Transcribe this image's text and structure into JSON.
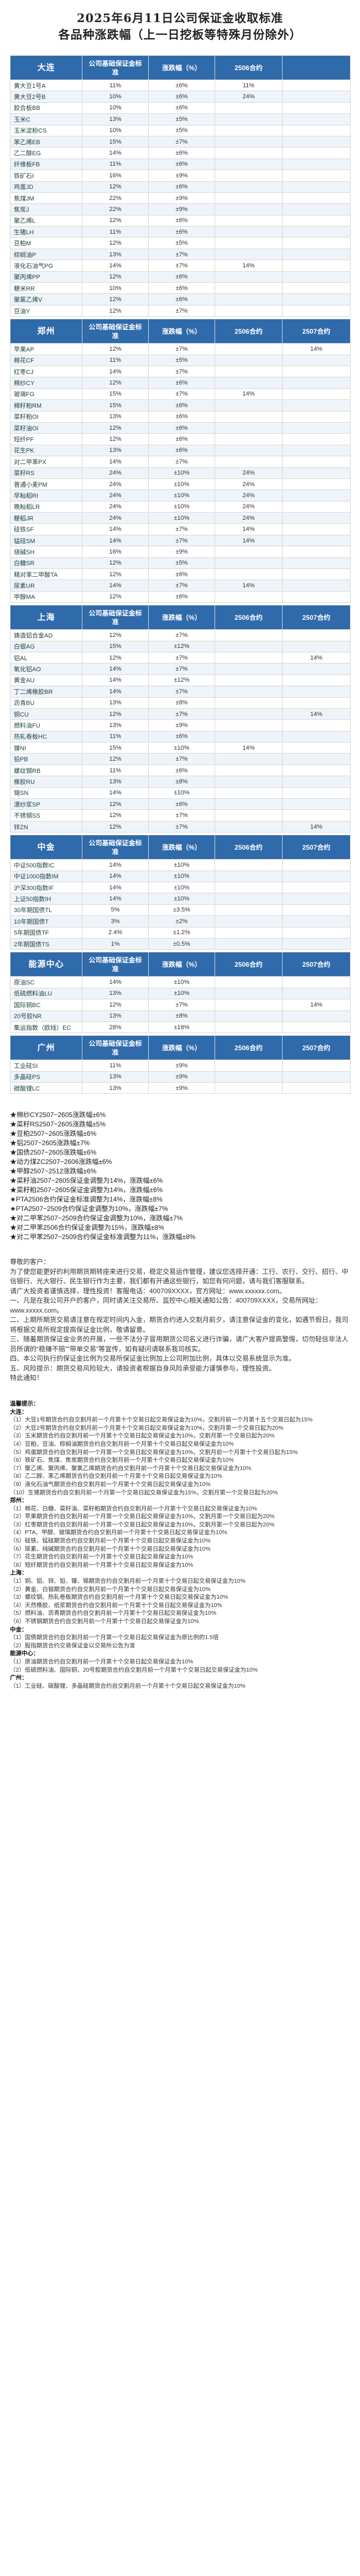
{
  "title": {
    "line1": "2025年6月11日公司保证金收取标准",
    "line2": "各品种涨跌幅（上一日挖板等特殊月份除外）"
  },
  "headers": {
    "h1": "公司基础保证金标准",
    "h2": "涨跌幅（%）",
    "h3": "2506合约",
    "h4": "2507合约"
  },
  "sections": [
    {
      "exchange": "大连",
      "h3": "2506合约",
      "rows": [
        [
          "黄大豆1号A",
          "11%",
          "±6%",
          "11%"
        ],
        [
          "黄大豆2号B",
          "10%",
          "±6%",
          "24%"
        ],
        [
          "胶合板BB",
          "10%",
          "±6%",
          ""
        ],
        [
          "玉米C",
          "13%",
          "±5%",
          ""
        ],
        [
          "玉米淀粉CS",
          "10%",
          "±5%",
          ""
        ],
        [
          "苯乙烯EB",
          "15%",
          "±7%",
          ""
        ],
        [
          "乙二醇EG",
          "14%",
          "±6%",
          ""
        ],
        [
          "纤维板FB",
          "11%",
          "±6%",
          ""
        ],
        [
          "铁矿石I",
          "16%",
          "±9%",
          ""
        ],
        [
          "鸡蛋JD",
          "12%",
          "±6%",
          ""
        ],
        [
          "焦煤JM",
          "22%",
          "±9%",
          ""
        ],
        [
          "焦炭J",
          "22%",
          "±9%",
          ""
        ],
        [
          "聚乙烯L",
          "12%",
          "±6%",
          ""
        ],
        [
          "生猪LH",
          "11%",
          "±6%",
          ""
        ],
        [
          "豆粕M",
          "12%",
          "±5%",
          ""
        ],
        [
          "棕榈油P",
          "13%",
          "±7%",
          ""
        ],
        [
          "液化石油气PG",
          "14%",
          "±7%",
          "14%"
        ],
        [
          "聚丙烯PP",
          "12%",
          "±6%",
          ""
        ],
        [
          "粳米RR",
          "10%",
          "±6%",
          ""
        ],
        [
          "聚氯乙烯V",
          "12%",
          "±6%",
          ""
        ],
        [
          "豆油Y",
          "12%",
          "±7%",
          ""
        ]
      ]
    },
    {
      "exchange": "郑州",
      "h3": "2506合约",
      "h4": "2507合约",
      "rows": [
        [
          "苹果AP",
          "12%",
          "±7%",
          "",
          "14%"
        ],
        [
          "棉花CF",
          "11%",
          "±5%",
          "",
          ""
        ],
        [
          "红枣CJ",
          "14%",
          "±7%",
          "",
          ""
        ],
        [
          "棉纱CY",
          "12%",
          "±6%",
          "",
          ""
        ],
        [
          "玻璃FG",
          "15%",
          "±7%",
          "14%",
          ""
        ],
        [
          "棉籽粕RM",
          "15%",
          "±6%",
          "",
          ""
        ],
        [
          "菜籽粕OI",
          "13%",
          "±6%",
          "",
          ""
        ],
        [
          "菜籽油OI",
          "12%",
          "±6%",
          "",
          ""
        ],
        [
          "短纤PF",
          "12%",
          "±6%",
          "",
          ""
        ],
        [
          "花生PK",
          "13%",
          "±6%",
          "",
          ""
        ],
        [
          "对二甲苯PX",
          "14%",
          "±7%",
          "",
          ""
        ],
        [
          "菜籽RS",
          "24%",
          "±10%",
          "24%",
          ""
        ],
        [
          "普通小麦PM",
          "24%",
          "±10%",
          "24%",
          ""
        ],
        [
          "早籼稻RI",
          "24%",
          "±10%",
          "24%",
          ""
        ],
        [
          "晚籼稻LR",
          "24%",
          "±10%",
          "24%",
          ""
        ],
        [
          "粳稻JR",
          "24%",
          "±10%",
          "24%",
          ""
        ],
        [
          "硅铁SF",
          "14%",
          "±7%",
          "14%",
          ""
        ],
        [
          "锰硅SM",
          "14%",
          "±7%",
          "14%",
          ""
        ],
        [
          "烧碱SH",
          "16%",
          "±9%",
          "",
          ""
        ],
        [
          "白糖SR",
          "12%",
          "±5%",
          "",
          ""
        ],
        [
          "精对苯二甲酸TA",
          "12%",
          "±6%",
          "",
          ""
        ],
        [
          "尿素UR",
          "14%",
          "±7%",
          "14%",
          ""
        ],
        [
          "甲醇MA",
          "12%",
          "±6%",
          "",
          ""
        ]
      ]
    },
    {
      "exchange": "上海",
      "h3": "2506合约",
      "h4": "2507合约",
      "rows": [
        [
          "铸造铝合金AD",
          "12%",
          "±7%",
          "",
          ""
        ],
        [
          "白银AG",
          "15%",
          "±12%",
          "",
          ""
        ],
        [
          "铝AL",
          "12%",
          "±7%",
          "",
          "14%"
        ],
        [
          "氧化铝AO",
          "14%",
          "±7%",
          "",
          ""
        ],
        [
          "黄金AU",
          "14%",
          "±12%",
          "",
          ""
        ],
        [
          "丁二烯橡胶BR",
          "14%",
          "±7%",
          "",
          ""
        ],
        [
          "沥青BU",
          "13%",
          "±8%",
          "",
          ""
        ],
        [
          "铜CU",
          "12%",
          "±7%",
          "",
          "14%"
        ],
        [
          "燃料油FU",
          "13%",
          "±9%",
          "",
          ""
        ],
        [
          "热轧卷板HC",
          "11%",
          "±6%",
          "",
          ""
        ],
        [
          "镍NI",
          "15%",
          "±10%",
          "14%",
          ""
        ],
        [
          "铅PB",
          "12%",
          "±7%",
          "",
          ""
        ],
        [
          "螺纹钢RB",
          "11%",
          "±6%",
          "",
          ""
        ],
        [
          "橡胶RU",
          "13%",
          "±8%",
          "",
          ""
        ],
        [
          "锡SN",
          "14%",
          "±10%",
          "",
          ""
        ],
        [
          "漂纱浆SP",
          "12%",
          "±6%",
          "",
          ""
        ],
        [
          "不锈钢SS",
          "12%",
          "±7%",
          "",
          ""
        ],
        [
          "锌ZN",
          "12%",
          "±7%",
          "",
          "14%"
        ]
      ]
    },
    {
      "exchange": "中金",
      "h3": "2506合约",
      "h4": "2507合约",
      "rows": [
        [
          "中证500指数IC",
          "14%",
          "±10%",
          "",
          ""
        ],
        [
          "中证1000指数IM",
          "14%",
          "±10%",
          "",
          ""
        ],
        [
          "沪深300指数IF",
          "14%",
          "±10%",
          "",
          ""
        ],
        [
          "上证50指数IH",
          "14%",
          "±10%",
          "",
          ""
        ],
        [
          "30年期国债TL",
          "5%",
          "±3.5%",
          "",
          ""
        ],
        [
          "10年期国债T",
          "3%",
          "±2%",
          "",
          ""
        ],
        [
          "5年期国债TF",
          "2.4%",
          "±1.2%",
          "",
          ""
        ],
        [
          "2年期国债TS",
          "1%",
          "±0.5%",
          "",
          ""
        ]
      ]
    },
    {
      "exchange": "能源中心",
      "h3": "2506合约",
      "h4": "2507合约",
      "rows": [
        [
          "原油SC",
          "14%",
          "±10%",
          "",
          ""
        ],
        [
          "低硫燃料油LU",
          "13%",
          "±10%",
          "",
          ""
        ],
        [
          "国际铜BC",
          "12%",
          "±7%",
          "",
          "14%"
        ],
        [
          "20号胶NR",
          "13%",
          "±8%",
          "",
          ""
        ],
        [
          "集运指数（欧线）EC",
          "28%",
          "±18%",
          "",
          ""
        ]
      ]
    },
    {
      "exchange": "广州",
      "h3": "2506合约",
      "h4": "2507合约",
      "rows": [
        [
          "工业硅SI",
          "11%",
          "±9%",
          "",
          ""
        ],
        [
          "多晶硅PS",
          "13%",
          "±9%",
          "",
          ""
        ],
        [
          "碳酸锂LC",
          "13%",
          "±9%",
          "",
          ""
        ]
      ]
    }
  ],
  "notes": [
    "★棉纱CY2507~2605涨跌幅±6%",
    "★菜籽RS2507~2605涨跌幅±5%",
    "★豆粕2507~2605涨跌幅±6%",
    "★铝2507~2605涨跌幅±7%",
    "★国债2507~2605涨跌幅±6%",
    "★动力煤ZC2507~2606涨跌幅±6%",
    "★甲醇2507~2512涨跌幅±6%",
    "★菜籽油2507~2605保证金调整为14%，涨跌幅±6%",
    "★菜籽粕2507~2605保证金调整为14%，涨跌幅±6%",
    "★PTA2506合约保证金标准调整为14%，涨跌幅±8%",
    "★PTA2507~2509合约保证金调整为10%，涨跌幅±7%",
    "★对二甲苯2507~2509合约保证金调整为10%，涨跌幅±7%",
    "★对二甲苯2506合约保证金调整为15%，涨跌幅±8%",
    "★对二甲苯2507~2509合约保证金标准调整为11%，涨跌幅±8%"
  ],
  "letter": [
    "尊敬的客户：",
    "为了使您能更好的利用期货期转座来进行交易，稳定交易运作管理，建议您选择开通：工行、农行、交行、招行、中信银行、光大银行、民生银行作为主要，我们都有开通这些银行，如您有何问题，请与我们客服联系。",
    "请广大投资者谨慎选择，理性投资！客服电话：400709XXXX，官方网址：www.xxxxxx.com。",
    "一、凡是在我公司开户的客户，同时请关注交易所、监控中心相关通知公告：400709XXXX，交易所网址：www.xxxxx.com。",
    "二、上期所期货交易请注意在规定时间内入金，期货合约进入交割月前夕，请注意保证金的变化，如遇节假日，我司将根据交易所规定提高保证金比例，敬请留意。",
    "三、随着期货保证金业务的开展，一些不法分子冒用期货公司名义进行诈骗，请广大客户提高警惕，切勿轻信非法人员所谓的“稳赚不赔”“带单交易”等宣传，如有疑问请联系我司核实。",
    "四、本公司执行的保证金比例为交易所保证金比例加上公司附加比例，具体以交易系统显示为准。",
    "五、风险提示：期货交易风险较大，请投资者根据自身风险承受能力谨慎参与，理性投资。",
    "特此通知！"
  ],
  "footer": {
    "heading": "温馨提示：",
    "sub1": "大连：",
    "lines1": [
      "（1）大豆1号期货合约自交割月前一个月第十个交易日起交易保证金为10%，交割月前一个月第十五个交易日起为15%",
      "（2）大豆2号期货合约自交割月前一个月第十个交易日起交易保证金为10%，交割月第一个交易日起为20%",
      "（3）玉米期货合约自交割月前一个月第十个交易日起交易保证金为10%，交割月第一个交易日起为20%",
      "（4）豆粕、豆油、棕榈油期货合约自交割月前一个月第十个交易日起交易保证金为10%",
      "（5）鸡蛋期货合约自交割月前一个月第一个交易日起交易保证金为10%，交割月前一个月第十个交易日起为15%",
      "（6）铁矿石、焦煤、焦炭期货合约自交割月前一个月第十个交易日起交易保证金为10%",
      "（7）聚乙烯、聚丙烯、聚氯乙烯期货合约自交割月前一个月第十个交易日起交易保证金为10%",
      "（8）乙二醇、苯乙烯期货合约自交割月前一个月第十个交易日起交易保证金为10%",
      "（9）液化石油气期货合约自交割月前一个月第十个交易日起交易保证金为10%",
      "（10）生猪期货合约自交割月前一个月第一个交易日起交易保证金为15%，交割月第一个交易日起为20%"
    ],
    "sub2": "郑州：",
    "lines2": [
      "（1）棉花、白糖、菜籽油、菜籽粕期货合约自交割月前一个月第十个交易日起交易保证金为10%",
      "（2）苹果期货合约自交割月前一个月第一个交易日起交易保证金为10%，交割月第一个交易日起为20%",
      "（3）红枣期货合约自交割月前一个月第一个交易日起交易保证金为10%，交割月第一个交易日起为20%",
      "（4）PTA、甲醇、玻璃期货合约自交割月前一个月第十个交易日起交易保证金为10%",
      "（5）硅铁、锰硅期货合约自交割月前一个月第十个交易日起交易保证金为10%",
      "（6）尿素、纯碱期货合约自交割月前一个月第十个交易日起交易保证金为10%",
      "（7）花生期货合约自交割月前一个月第十个交易日起交易保证金为10%",
      "（8）短纤期货合约自交割月前一个月第十个交易日起交易保证金为10%"
    ],
    "sub3": "上海：",
    "lines3": [
      "（1）铜、铝、锌、铅、镍、锡期货合约自交割月前一个月第十个交易日起交易保证金为10%",
      "（2）黄金、白银期货合约自交割月前一个月第十个交易日起交易保证金为10%",
      "（3）螺纹钢、热轧卷板期货合约自交割月前一个月第十个交易日起交易保证金为10%",
      "（4）天然橡胶、纸浆期货合约自交割月前一个月第十个交易日起交易保证金为10%",
      "（5）燃料油、沥青期货合约自交割月前一个月第十个交易日起交易保证金为10%",
      "（6）不锈钢期货合约自交割月前一个月第十个交易日起交易保证金为10%"
    ],
    "sub4": "中金：",
    "lines4": [
      "（1）国债期货合约自交割月前一个月第一个交易日起交易保证金为原比例的1.5倍",
      "（2）股指期货合约交易保证金以交易所公告为准"
    ],
    "sub5": "能源中心：",
    "lines5": [
      "（1）原油期货合约自交割月前一个月第十个交易日起交易保证金为10%",
      "（2）低硫燃料油、国际铜、20号胶期货合约自交割月前一个月第十个交易日起交易保证金为10%"
    ],
    "sub6": "广州：",
    "lines6": [
      "（1）工业硅、碳酸锂、多晶硅期货合约自交割月前一个月第十个交易日起交易保证金为10%"
    ]
  }
}
